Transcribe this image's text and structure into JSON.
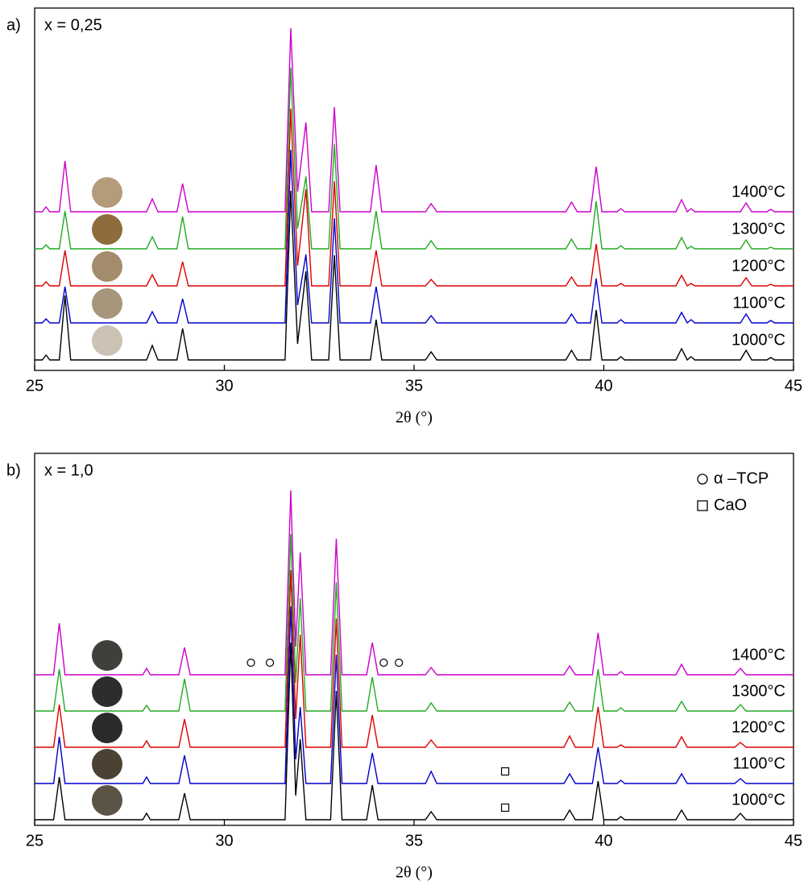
{
  "chart_data": [
    {
      "type": "line",
      "panel_label": "a)",
      "annotation": "x = 0,25",
      "xlabel": "2θ (°)",
      "xlim": [
        25,
        45
      ],
      "xticks": [
        25,
        30,
        35,
        40,
        45
      ],
      "ylim": [
        -13,
        437
      ],
      "x": [
        25,
        25.2,
        25.3,
        25.4,
        25.65,
        25.8,
        25.95,
        27.95,
        28.1,
        28.25,
        28.75,
        28.9,
        29.05,
        31.6,
        31.75,
        31.93,
        32.15,
        32.3,
        32.75,
        32.9,
        33.05,
        33.85,
        34.0,
        34.15,
        35.3,
        35.45,
        35.6,
        39.0,
        39.15,
        39.3,
        39.65,
        39.8,
        39.95,
        40.35,
        40.45,
        40.55,
        41.9,
        42.05,
        42.2,
        42.3,
        42.4,
        43.6,
        43.75,
        43.9,
        44.3,
        44.4,
        44.5,
        45
      ],
      "series": [
        {
          "name": "1000°C",
          "color": "#000000",
          "sample_color": "#cbc2b3",
          "values": [
            0,
            0,
            6,
            0,
            0,
            80,
            0,
            0,
            18,
            0,
            0,
            39,
            0,
            0,
            210,
            20,
            110,
            0,
            0,
            130,
            0,
            0,
            50,
            0,
            0,
            10,
            0,
            0,
            12,
            0,
            0,
            62,
            0,
            0,
            4,
            0,
            0,
            14,
            0,
            4,
            0,
            0,
            12,
            0,
            0,
            3,
            0,
            0
          ]
        },
        {
          "name": "1100°C",
          "color": "#0000cc",
          "sample_color": "#a8967c",
          "values": [
            0,
            0,
            5,
            0,
            0,
            45,
            0,
            0,
            14,
            0,
            0,
            30,
            0,
            0,
            215,
            22,
            85,
            0,
            0,
            130,
            0,
            0,
            45,
            0,
            0,
            9,
            0,
            0,
            11,
            0,
            0,
            55,
            0,
            0,
            4,
            0,
            0,
            13,
            0,
            4,
            0,
            0,
            11,
            0,
            0,
            3,
            0,
            0
          ]
        },
        {
          "name": "1200°C",
          "color": "#dd0000",
          "sample_color": "#a38c6c",
          "values": [
            0,
            0,
            5,
            0,
            0,
            44,
            0,
            0,
            14,
            0,
            0,
            30,
            0,
            0,
            220,
            25,
            120,
            0,
            0,
            130,
            0,
            0,
            44,
            0,
            0,
            8,
            0,
            0,
            11,
            0,
            0,
            52,
            0,
            0,
            3,
            0,
            0,
            13,
            0,
            3,
            0,
            0,
            10,
            0,
            0,
            2,
            0,
            0
          ]
        },
        {
          "name": "1300°C",
          "color": "#22aa22",
          "sample_color": "#8e6c3e",
          "values": [
            0,
            0,
            5,
            0,
            0,
            47,
            0,
            0,
            15,
            0,
            0,
            40,
            0,
            0,
            225,
            25,
            90,
            0,
            0,
            130,
            0,
            0,
            47,
            0,
            0,
            10,
            0,
            0,
            12,
            0,
            0,
            59,
            0,
            0,
            4,
            0,
            0,
            14,
            0,
            3,
            0,
            0,
            11,
            0,
            0,
            2,
            0,
            0
          ]
        },
        {
          "name": "1400°C",
          "color": "#cc00cc",
          "sample_color": "#b49b7a",
          "values": [
            0,
            0,
            6,
            0,
            0,
            63,
            0,
            0,
            16,
            0,
            0,
            35,
            0,
            0,
            228,
            25,
            111,
            0,
            0,
            130,
            0,
            0,
            58,
            0,
            0,
            10,
            0,
            0,
            12,
            0,
            0,
            56,
            0,
            0,
            4,
            0,
            0,
            15,
            0,
            4,
            0,
            0,
            11,
            0,
            0,
            3,
            0,
            0
          ]
        }
      ]
    },
    {
      "type": "line",
      "panel_label": "b)",
      "annotation": "x = 1,0",
      "xlabel": "2θ (°)",
      "xlim": [
        25,
        45
      ],
      "xticks": [
        25,
        30,
        35,
        40,
        45
      ],
      "ylim": [
        -7,
        455
      ],
      "legend": [
        {
          "symbol": "circle",
          "label": "α –TCP"
        },
        {
          "symbol": "square",
          "label": "CaO"
        }
      ],
      "x": [
        25,
        25.5,
        25.65,
        25.8,
        27.85,
        27.95,
        28.05,
        28.8,
        28.95,
        29.1,
        31.6,
        31.75,
        31.88,
        32.0,
        32.15,
        32.8,
        32.95,
        33.1,
        33.75,
        33.9,
        34.05,
        35.3,
        35.45,
        35.6,
        38.95,
        39.1,
        39.25,
        39.7,
        39.85,
        40.0,
        40.35,
        40.45,
        40.55,
        41.9,
        42.05,
        42.2,
        43.45,
        43.6,
        43.75,
        45
      ],
      "series": [
        {
          "name": "1000°C",
          "color": "#000000",
          "sample_color": "#5a5346",
          "markers": [
            {
              "symbol": "square",
              "x": [
                37.4
              ]
            }
          ],
          "values": [
            0,
            0,
            53,
            0,
            0,
            8,
            0,
            0,
            33,
            0,
            0,
            220,
            30,
            100,
            0,
            0,
            160,
            0,
            0,
            43,
            0,
            0,
            10,
            0,
            0,
            12,
            0,
            0,
            48,
            0,
            0,
            4,
            0,
            0,
            12,
            0,
            0,
            8,
            0,
            0
          ]
        },
        {
          "name": "1100°C",
          "color": "#0000cc",
          "sample_color": "#4b4234",
          "markers": [
            {
              "symbol": "square",
              "x": [
                37.4
              ]
            }
          ],
          "values": [
            0,
            0,
            58,
            0,
            0,
            8,
            0,
            0,
            35,
            0,
            0,
            220,
            30,
            95,
            0,
            0,
            160,
            0,
            0,
            38,
            0,
            0,
            15,
            0,
            0,
            12,
            0,
            0,
            45,
            0,
            0,
            4,
            0,
            0,
            12,
            0,
            0,
            6,
            0,
            0
          ]
        },
        {
          "name": "1200°C",
          "color": "#dd0000",
          "sample_color": "#2c2a28",
          "values": [
            0,
            0,
            53,
            0,
            0,
            8,
            0,
            0,
            35,
            0,
            0,
            220,
            35,
            140,
            0,
            0,
            160,
            0,
            0,
            40,
            0,
            0,
            9,
            0,
            0,
            14,
            0,
            0,
            50,
            0,
            0,
            3,
            0,
            0,
            13,
            0,
            0,
            6,
            0,
            0
          ]
        },
        {
          "name": "1300°C",
          "color": "#22aa22",
          "sample_color": "#2f2d2b",
          "values": [
            0,
            0,
            52,
            0,
            0,
            7,
            0,
            0,
            40,
            0,
            0,
            220,
            35,
            140,
            0,
            0,
            160,
            0,
            0,
            42,
            0,
            0,
            10,
            0,
            0,
            11,
            0,
            0,
            52,
            0,
            0,
            4,
            0,
            0,
            12,
            0,
            0,
            8,
            0,
            0
          ]
        },
        {
          "name": "1400°C",
          "color": "#cc00cc",
          "sample_color": "#413f3b",
          "markers": [
            {
              "symbol": "circle",
              "x": [
                30.7,
                31.2,
                34.2,
                34.6
              ]
            }
          ],
          "values": [
            0,
            0,
            64,
            0,
            0,
            8,
            0,
            0,
            34,
            0,
            0,
            229,
            35,
            152,
            0,
            0,
            169,
            0,
            0,
            40,
            0,
            0,
            9,
            0,
            0,
            11,
            0,
            0,
            52,
            0,
            0,
            4,
            0,
            0,
            13,
            0,
            0,
            8,
            0,
            0
          ]
        }
      ]
    }
  ]
}
